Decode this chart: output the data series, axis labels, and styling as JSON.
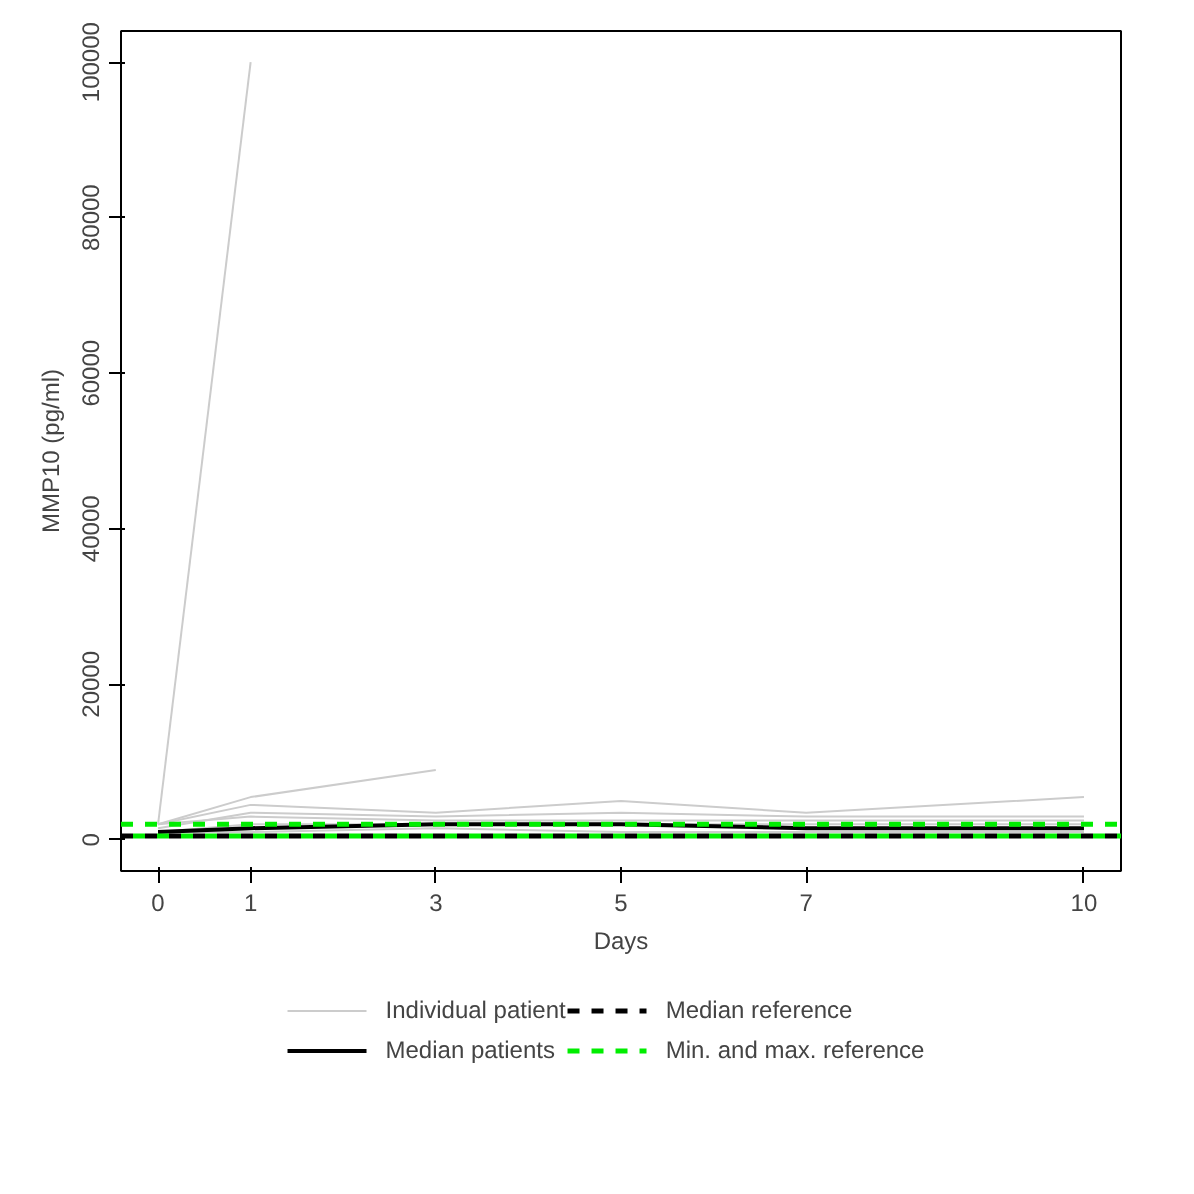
{
  "chart_data": {
    "type": "line",
    "xlabel": "Days",
    "ylabel": "MMP10 (pg/ml)",
    "x": [
      0,
      1,
      3,
      5,
      7,
      10
    ],
    "xlim": [
      -0.4,
      10.4
    ],
    "xticks": [
      0,
      1,
      3,
      5,
      7,
      10
    ],
    "ylim": [
      -4000,
      104000
    ],
    "yticks": [
      0,
      20000,
      40000,
      60000,
      80000,
      100000
    ],
    "legend": "bottom",
    "line_style": "solid",
    "series": [
      {
        "name": "Individual patient",
        "color": "#cccccc",
        "values": [
          2000,
          100000,
          null,
          null,
          null,
          null
        ]
      },
      {
        "color": "#cccccc",
        "values": [
          2000,
          5500,
          9000,
          null,
          null,
          null
        ]
      },
      {
        "color": "#cccccc",
        "values": [
          2000,
          4500,
          3500,
          5000,
          3500,
          5500
        ]
      },
      {
        "color": "#cccccc",
        "values": [
          1500,
          3500,
          3000,
          3500,
          3000,
          3000
        ]
      },
      {
        "color": "#cccccc",
        "values": [
          2000,
          3000,
          2500,
          2500,
          2500,
          2500
        ]
      },
      {
        "color": "#cccccc",
        "values": [
          1000,
          2000,
          2000,
          2000,
          2000,
          2000
        ]
      },
      {
        "color": "#cccccc",
        "values": [
          1000,
          1000,
          1500,
          1000,
          1000,
          1000
        ]
      },
      {
        "name": "Median patients",
        "color": "#000000",
        "values": [
          1000,
          1500,
          2000,
          2000,
          1500,
          1500
        ]
      }
    ],
    "ref_lines": [
      {
        "axis": "y",
        "value": 500,
        "label": "Median reference",
        "color": "#000000",
        "line_style": "dashed"
      },
      {
        "axis": "y",
        "value": 2000,
        "label": "Min. and max. reference",
        "color": "#00ee00",
        "line_style": "dashed"
      },
      {
        "axis": "y",
        "value": 500,
        "label": null,
        "color": "#00ee00",
        "line_style": "dashed"
      }
    ]
  }
}
